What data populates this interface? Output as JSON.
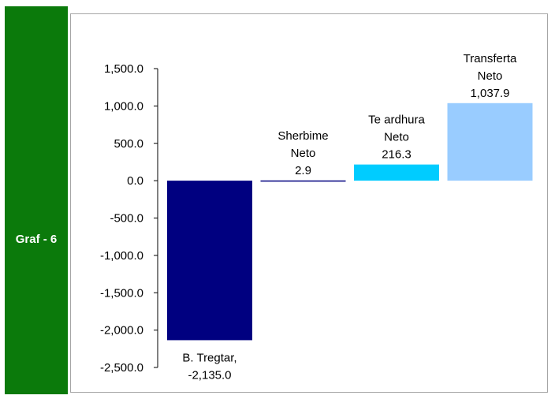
{
  "side_label": "Graf - 6",
  "chart_data": {
    "type": "bar",
    "categories": [
      "B. Tregtar",
      "Sherbime Neto",
      "Te ardhura Neto",
      "Transferta Neto"
    ],
    "values": [
      -2135.0,
      2.9,
      216.3,
      1037.9
    ],
    "data_labels": [
      [
        "B. Tregtar,",
        "-2,135.0"
      ],
      [
        "Sherbime",
        "Neto",
        "2.9"
      ],
      [
        "Te ardhura",
        "Neto",
        "216.3"
      ],
      [
        "Transferta",
        "Neto",
        "1,037.9"
      ]
    ],
    "colors": [
      "#000080",
      "#000080",
      "#00ccff",
      "#99ccff"
    ],
    "y_ticks": [
      1500,
      1000,
      500,
      0,
      -500,
      -1000,
      -1500,
      -2000,
      -2500
    ],
    "y_tick_labels": [
      "1,500.0",
      "1,000.0",
      "500.0",
      "0.0",
      "-500.0",
      "-1,000.0",
      "-1,500.0",
      "-2,000.0",
      "-2,500.0"
    ],
    "ylim": [
      -2500,
      1500
    ],
    "grid": false,
    "legend": false
  }
}
